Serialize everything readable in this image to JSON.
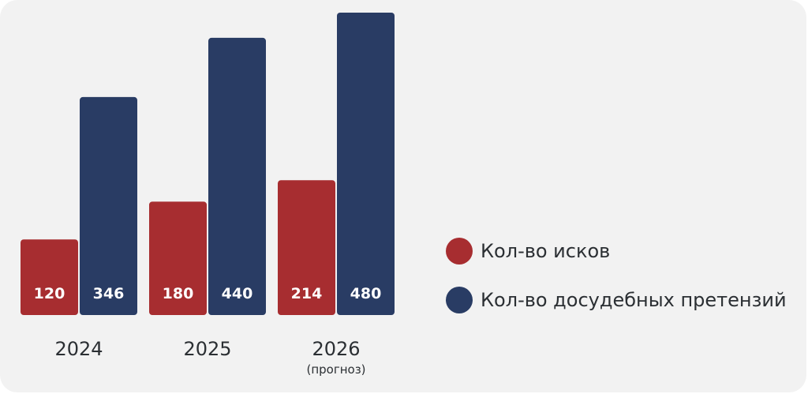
{
  "chart_data": {
    "type": "bar",
    "categories": [
      "2024",
      "2025",
      "2026"
    ],
    "category_sublabels": [
      "",
      "",
      "(прогноз)"
    ],
    "series": [
      {
        "name": "Кол-во исков",
        "values": [
          120,
          180,
          214
        ],
        "color": "#a72d30"
      },
      {
        "name": "Кол-во досудебных претензий",
        "values": [
          346,
          440,
          480
        ],
        "color": "#293c64"
      }
    ],
    "data_labels": true,
    "ylim": [
      0,
      480
    ],
    "grid": false,
    "legend_position": "right",
    "title": "",
    "xlabel": "",
    "ylabel": ""
  }
}
